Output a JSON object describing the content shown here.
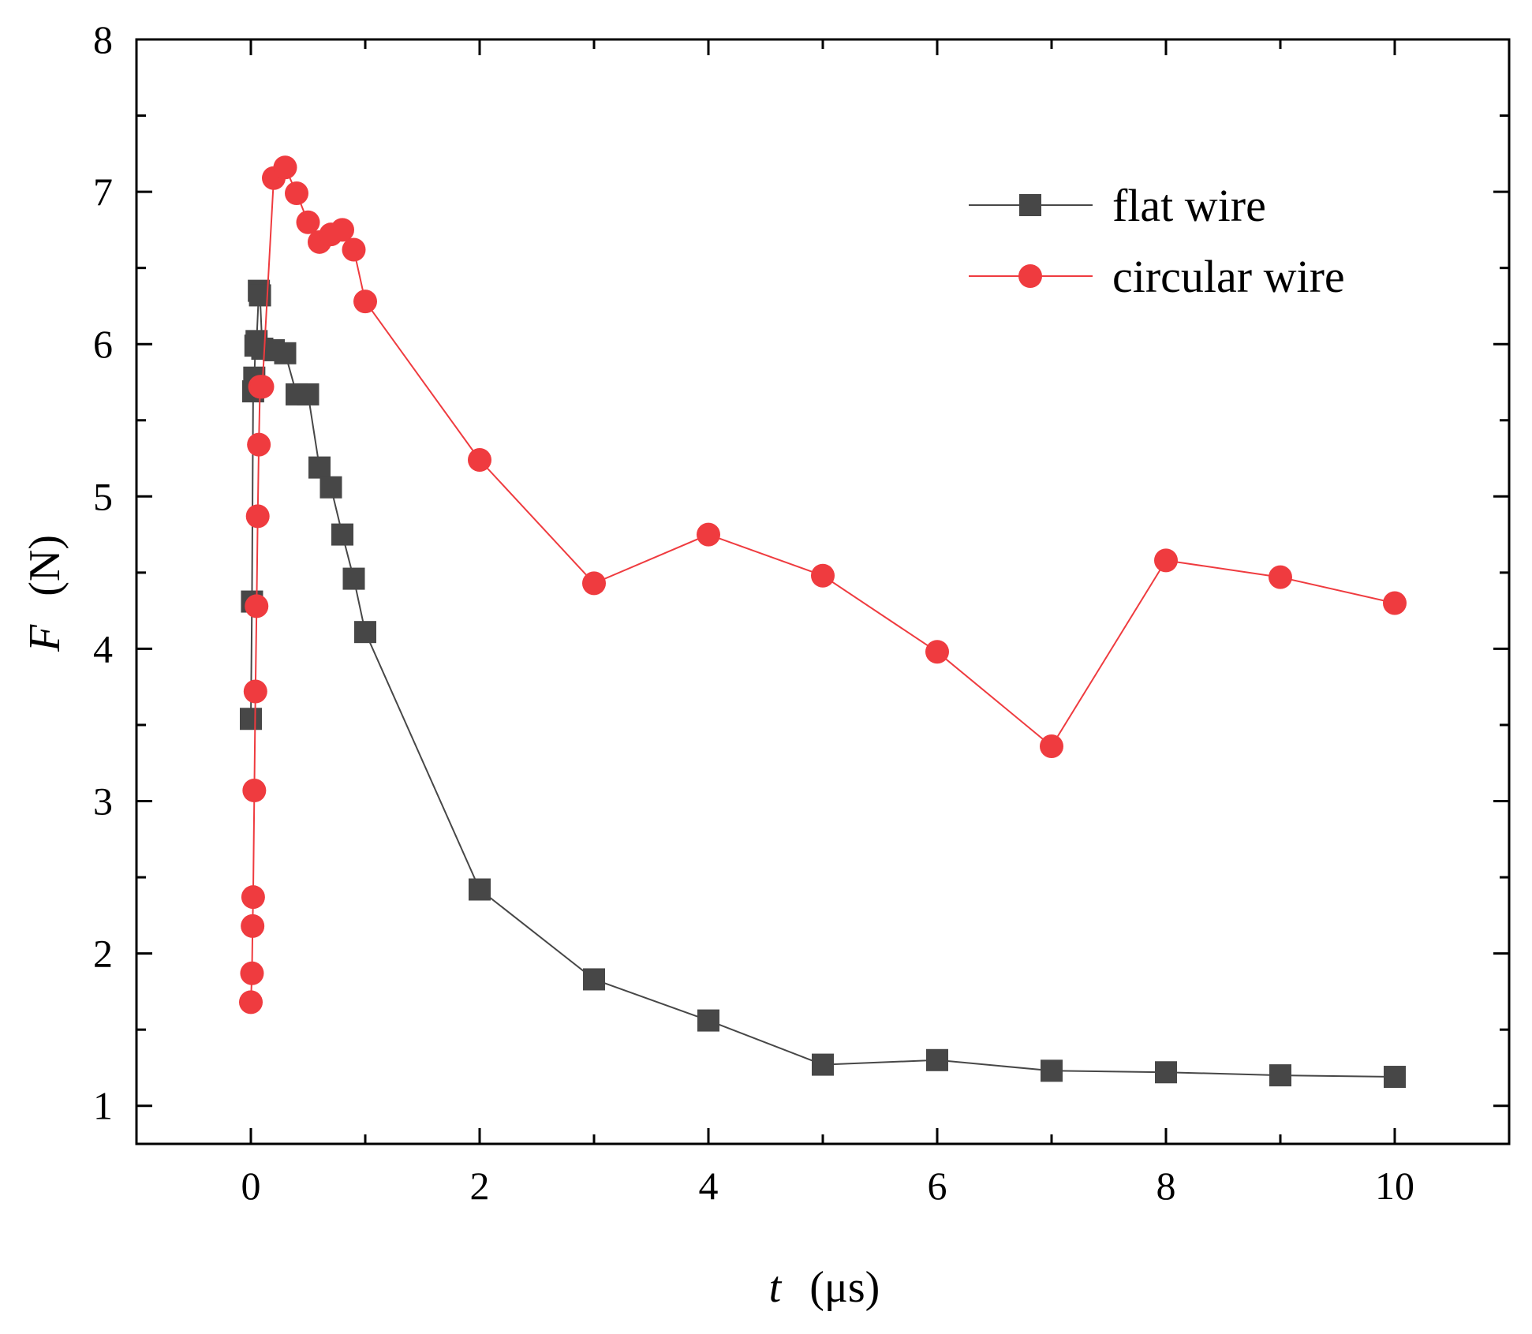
{
  "chart_data": {
    "type": "line",
    "xlabel": {
      "symbol": "t",
      "unit": "(μs)"
    },
    "ylabel": {
      "symbol": "F",
      "unit": "(N)"
    },
    "xlim": [
      -1,
      11
    ],
    "ylim": [
      0.75,
      8
    ],
    "xticks": [
      0,
      2,
      4,
      6,
      8,
      10
    ],
    "yticks": [
      1,
      2,
      3,
      4,
      5,
      6,
      7,
      8
    ],
    "legend_position": "top-right",
    "series": [
      {
        "name": "flat wire",
        "color": "#474747",
        "marker": "square",
        "x": [
          0.0,
          0.01,
          0.02,
          0.03,
          0.04,
          0.05,
          0.07,
          0.08,
          0.1,
          0.2,
          0.3,
          0.4,
          0.5,
          0.6,
          0.7,
          0.8,
          0.9,
          1,
          2,
          3,
          4,
          5,
          6,
          7,
          8,
          9,
          10
        ],
        "y": [
          3.54,
          4.31,
          5.69,
          5.78,
          5.99,
          6.02,
          6.35,
          6.32,
          5.97,
          5.96,
          5.94,
          5.67,
          5.67,
          5.19,
          5.06,
          4.75,
          4.46,
          4.11,
          2.42,
          1.83,
          1.56,
          1.27,
          1.3,
          1.23,
          1.22,
          1.2,
          1.19
        ]
      },
      {
        "name": "circular wire",
        "color": "#ef3b3f",
        "marker": "circle",
        "x": [
          0.0,
          0.01,
          0.015,
          0.02,
          0.03,
          0.04,
          0.05,
          0.06,
          0.07,
          0.08,
          0.09,
          0.1,
          0.2,
          0.3,
          0.4,
          0.5,
          0.6,
          0.7,
          0.8,
          0.9,
          1,
          2,
          3,
          4,
          5,
          6,
          7,
          8,
          9,
          10
        ],
        "y": [
          1.68,
          1.87,
          2.18,
          2.37,
          3.07,
          3.72,
          4.28,
          4.87,
          5.34,
          5.72,
          5.72,
          5.72,
          7.09,
          7.16,
          6.99,
          6.8,
          6.67,
          6.72,
          6.75,
          6.62,
          6.28,
          5.24,
          4.43,
          4.75,
          4.48,
          3.98,
          3.36,
          4.58,
          4.47,
          4.3
        ]
      }
    ]
  }
}
